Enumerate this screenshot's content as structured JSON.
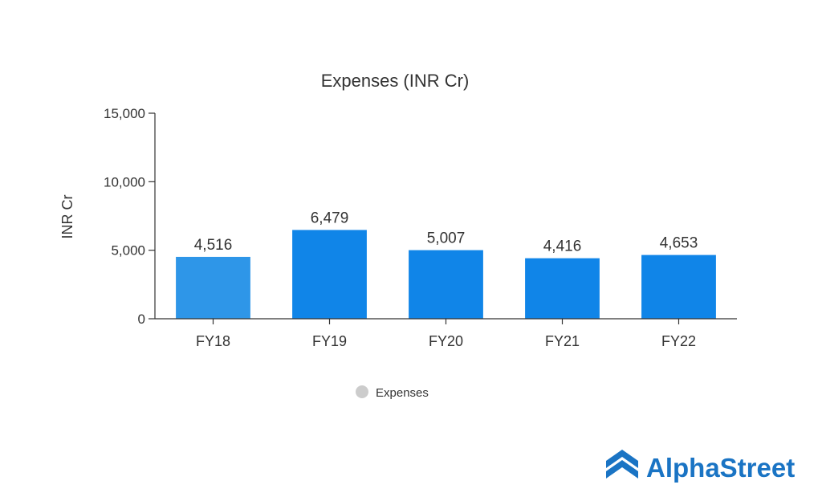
{
  "chart_data": {
    "type": "bar",
    "title": "Expenses (INR Cr)",
    "xlabel": "",
    "ylabel": "INR Cr",
    "categories": [
      "FY18",
      "FY19",
      "FY20",
      "FY21",
      "FY22"
    ],
    "series": [
      {
        "name": "Expenses",
        "values": [
          4516,
          6479,
          5007,
          4416,
          4653
        ]
      }
    ],
    "data_labels": [
      "4,516",
      "6,479",
      "5,007",
      "4,416",
      "4,653"
    ],
    "ylim": [
      0,
      15000
    ],
    "yticks": [
      0,
      5000,
      10000,
      15000
    ],
    "ytick_labels": [
      "0",
      "5,000",
      "10,000",
      "15,000"
    ],
    "grid": false,
    "legend_position": "bottom-center",
    "colors": {
      "first_bar": "#2e96e8",
      "bar": "#1085e8",
      "legend_marker": "#cccccc",
      "brand": "#1a74c4"
    }
  },
  "brand": {
    "name": "AlphaStreet",
    "icon": "alphastreet-logo-icon"
  }
}
